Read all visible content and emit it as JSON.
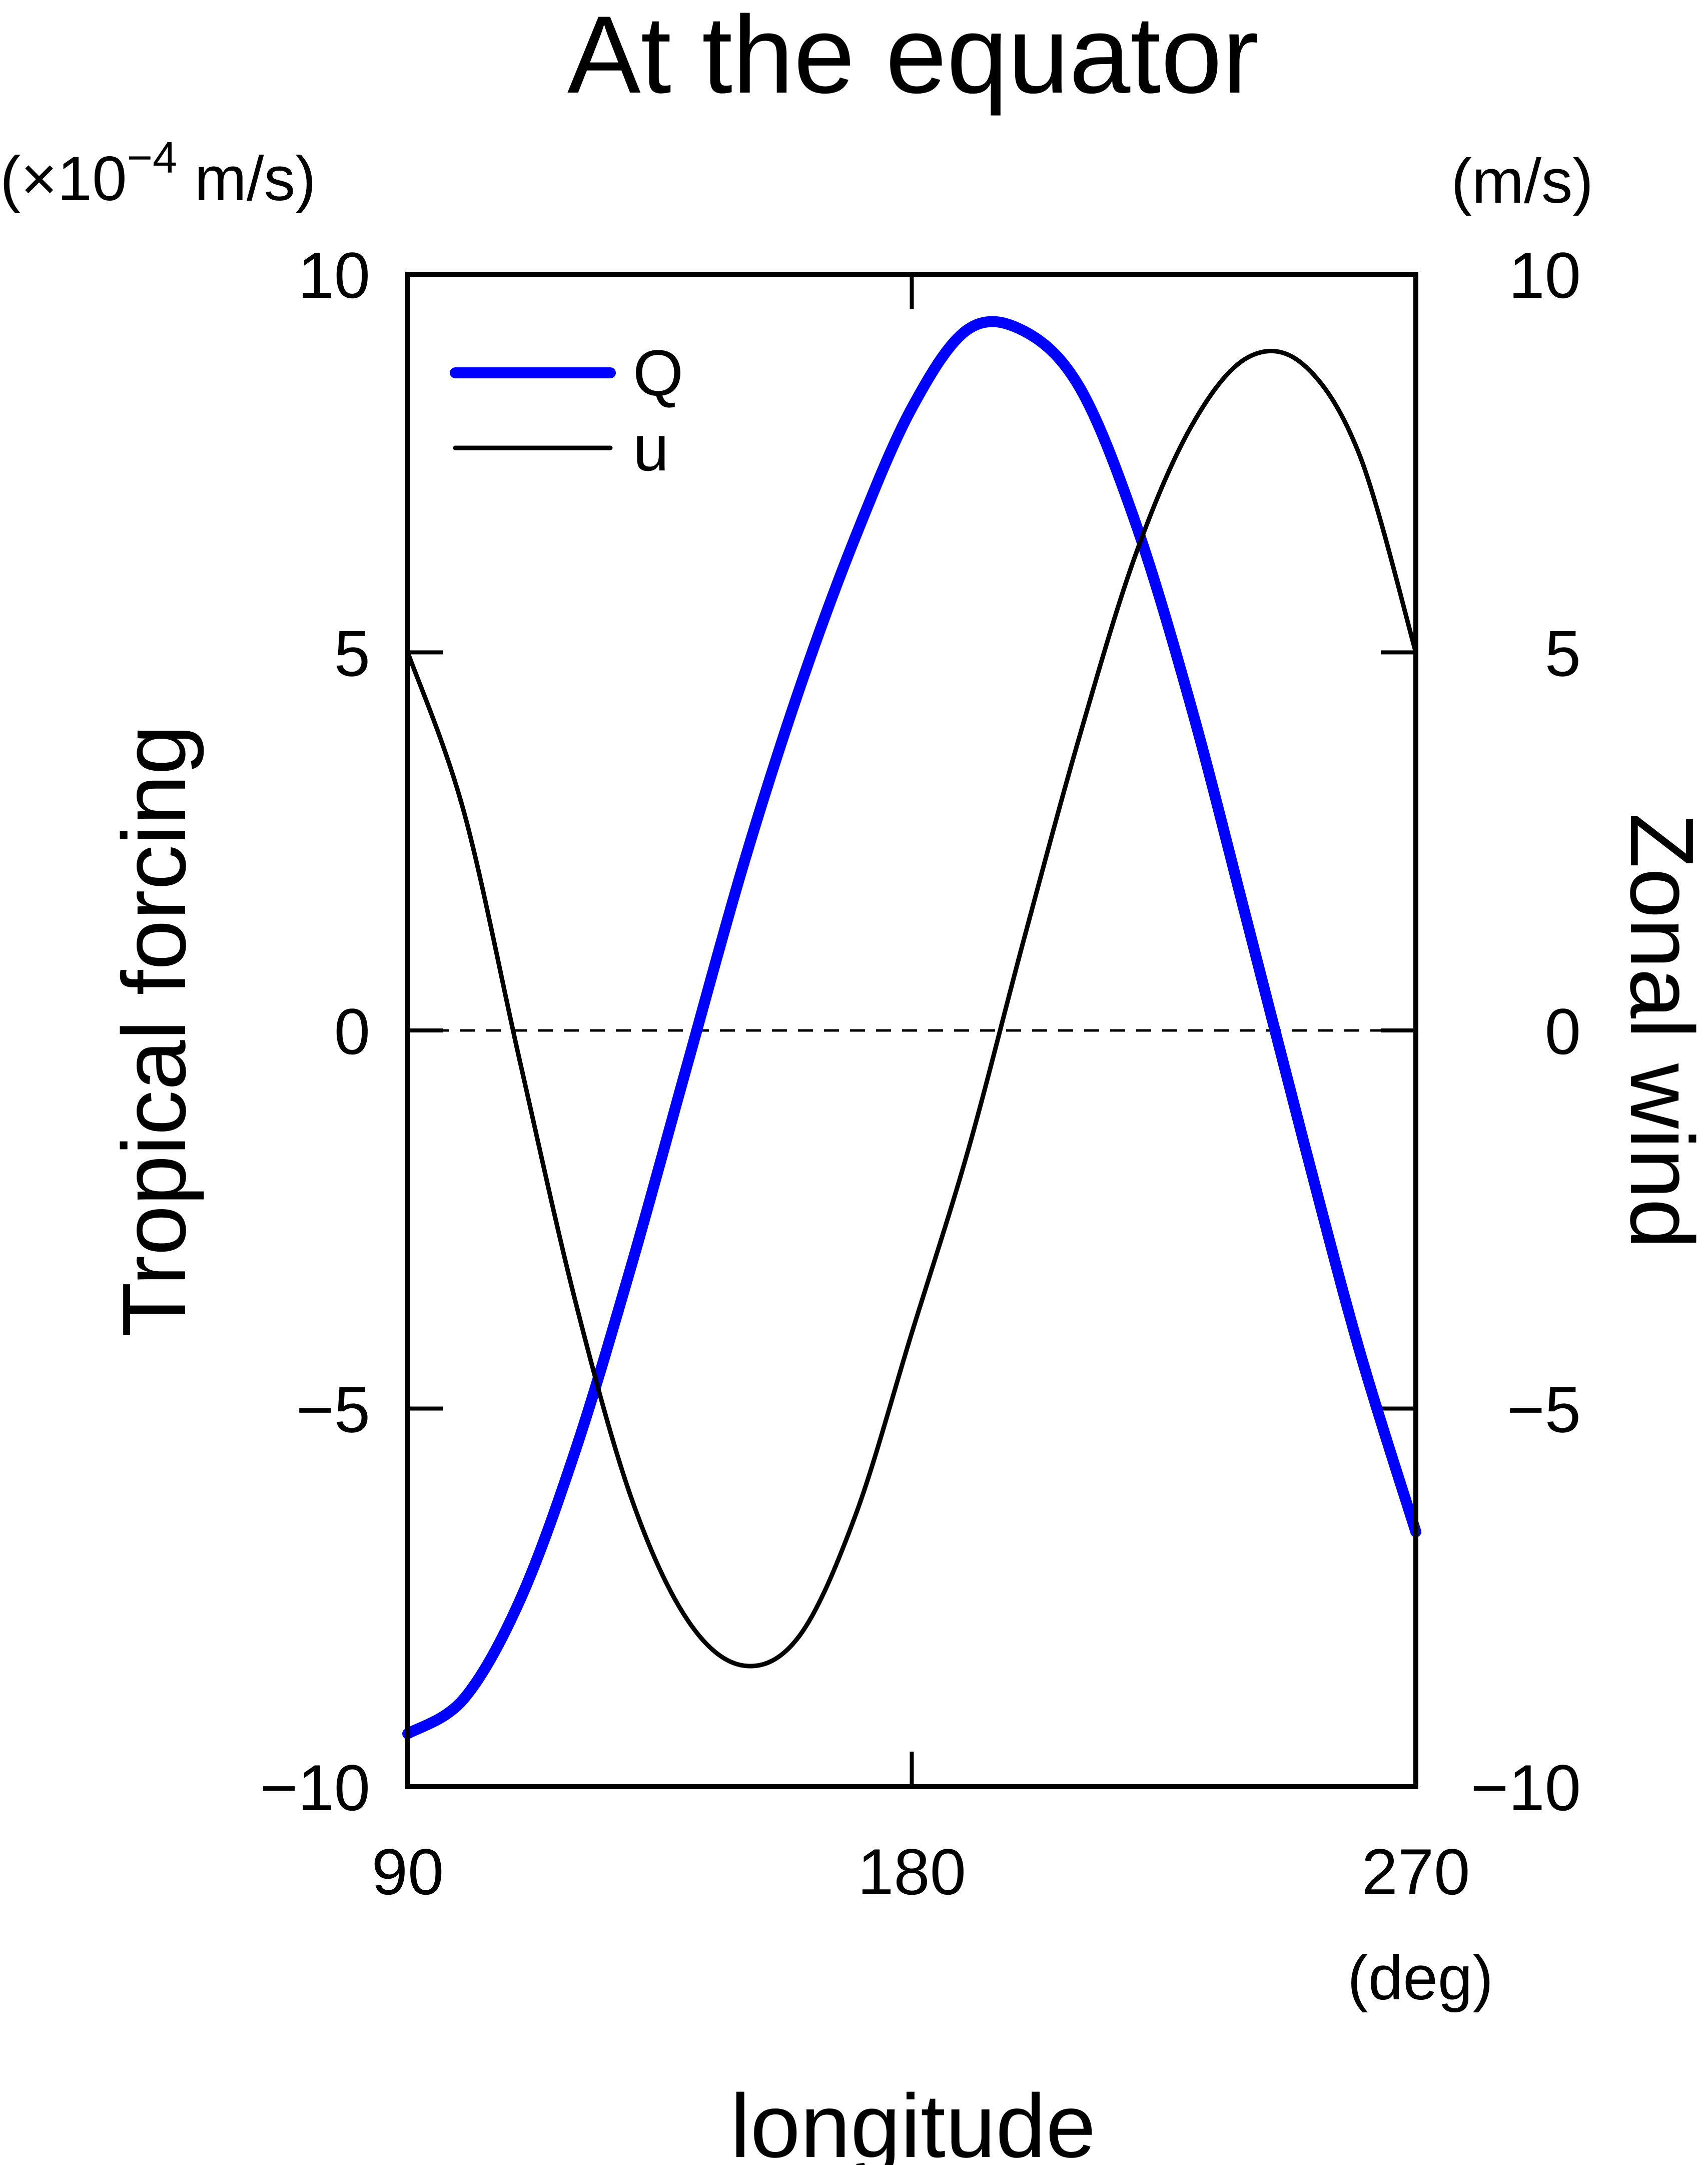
{
  "chart_data": {
    "type": "line",
    "title": "At the equator",
    "xlabel": "longitude",
    "x_unit": "(deg)",
    "ylabel_left": "Tropical forcing",
    "ylabel_right": "Zonal wind",
    "y_unit_left": "(×10",
    "y_unit_left_exp": "−4",
    "y_unit_left_tail": " m/s)",
    "y_unit_right": "(m/s)",
    "xlim": [
      90,
      270
    ],
    "ylim_left": [
      -10,
      10
    ],
    "ylim_right": [
      -10,
      10
    ],
    "xticks": [
      90,
      180,
      270
    ],
    "xtick_labels": [
      "90",
      "180",
      "270"
    ],
    "yticks": [
      -10,
      -5,
      0,
      5,
      10
    ],
    "ytick_labels_left": [
      "−10",
      "−5",
      "0",
      "5",
      "10"
    ],
    "ytick_labels_right": [
      "−10",
      "−5",
      "0",
      "5",
      "10"
    ],
    "zero_line": "dashed",
    "grid": false,
    "legend": {
      "position": "top-left"
    },
    "series": [
      {
        "name": "Q",
        "axis": "left",
        "color": "#0000ff",
        "style": "thick",
        "x": [
          90,
          100,
          110,
          120,
          130,
          140,
          150,
          160,
          170,
          180,
          190,
          200,
          210,
          220,
          230,
          240,
          250,
          260,
          270
        ],
        "y": [
          -9.3,
          -8.84,
          -7.54,
          -5.54,
          -3.09,
          -0.43,
          2.21,
          4.53,
          6.54,
          8.23,
          9.27,
          9.25,
          8.5,
          6.7,
          4.25,
          1.4,
          -1.48,
          -4.25,
          -6.63
        ]
      },
      {
        "name": "u",
        "axis": "right",
        "color": "#000000",
        "style": "thin",
        "x": [
          90,
          100,
          110,
          120,
          130,
          140,
          150,
          160,
          170,
          180,
          190,
          200,
          210,
          220,
          230,
          240,
          250,
          260,
          270
        ],
        "y": [
          5.0,
          2.9,
          -0.4,
          -3.6,
          -6.2,
          -7.8,
          -8.4,
          -8.0,
          -6.4,
          -4.0,
          -1.6,
          1.2,
          3.9,
          6.3,
          8.0,
          8.9,
          8.8,
          7.6,
          5.0
        ]
      }
    ]
  }
}
